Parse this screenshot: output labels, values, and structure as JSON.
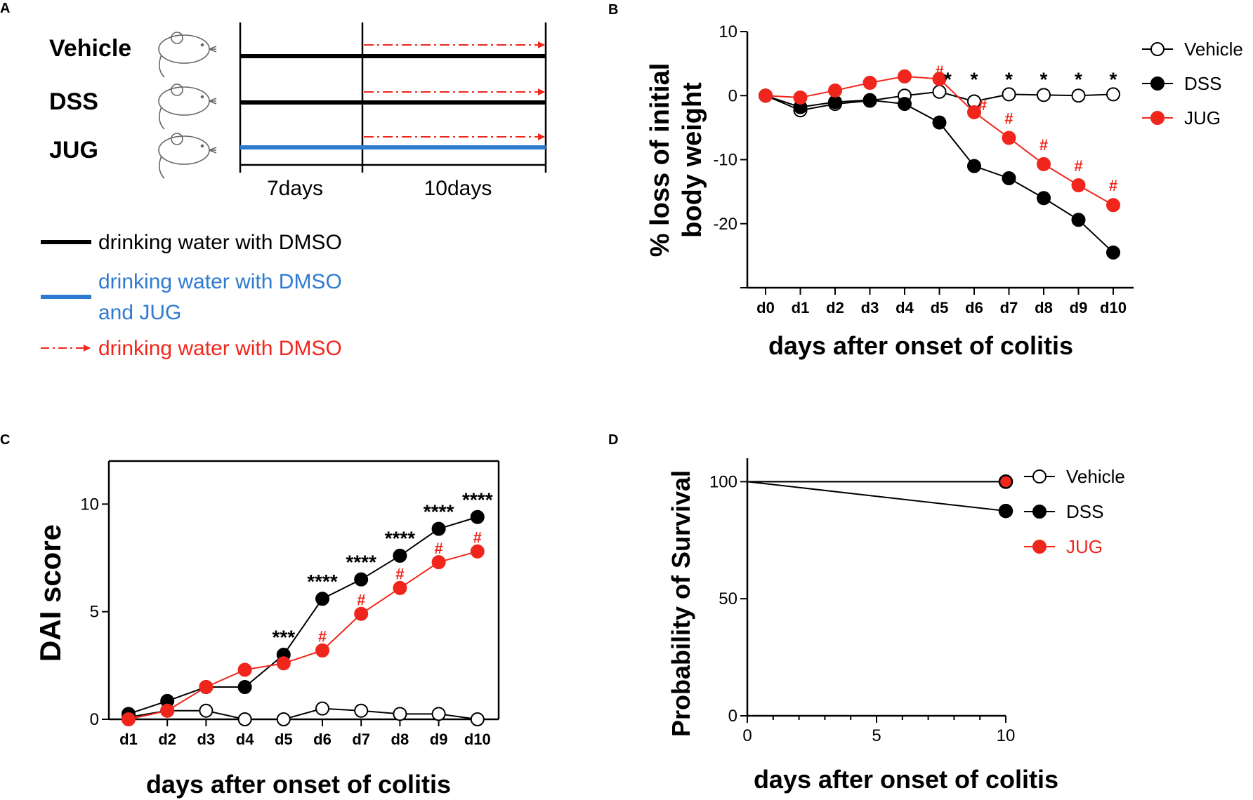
{
  "colors": {
    "black": "#000000",
    "red": "#f0261c",
    "blue": "#2e7ad1",
    "white": "#ffffff"
  },
  "panels": {
    "A": {
      "letter": "A",
      "groups": [
        "Vehicle",
        "DSS",
        "JUG"
      ],
      "durations": [
        "7days",
        "10days"
      ],
      "legend": [
        {
          "lines": [
            "drinking water with DMSO"
          ],
          "style": "black"
        },
        {
          "lines": [
            "drinking water with DMSO",
            "and JUG"
          ],
          "style": "blue"
        },
        {
          "lines": [
            "drinking water with DMSO"
          ],
          "style": "red-dashed-arrow"
        }
      ]
    },
    "B": {
      "letter": "B"
    },
    "C": {
      "letter": "C"
    },
    "D": {
      "letter": "D"
    }
  },
  "chart_data": [
    {
      "panel": "B",
      "type": "line",
      "ylabel": "% loss of initial body weight",
      "xlabel": "days after onset of colitis",
      "categories": [
        "d0",
        "d1",
        "d2",
        "d3",
        "d4",
        "d5",
        "d6",
        "d7",
        "d8",
        "d9",
        "d10"
      ],
      "ylim": [
        -30,
        10
      ],
      "yticks": [
        10,
        0,
        -10,
        -20
      ],
      "ytick_labels": [
        "10",
        "0",
        "-10",
        "-20"
      ],
      "series": [
        {
          "name": "Vehicle",
          "marker": "open",
          "values": [
            0,
            -2.3,
            -1.3,
            -0.8,
            0,
            0.6,
            -0.9,
            0.2,
            0.1,
            0,
            0.2
          ]
        },
        {
          "name": "DSS",
          "marker": "black",
          "values": [
            0,
            -1.8,
            -1.0,
            -0.7,
            -1.3,
            -4.2,
            -11.0,
            -12.9,
            -16.0,
            -19.4,
            -24.5
          ]
        },
        {
          "name": "JUG",
          "marker": "red",
          "values": [
            0,
            -0.3,
            0.8,
            2.0,
            3.0,
            2.6,
            -2.6,
            -6.6,
            -10.7,
            -14.0,
            -17.1
          ]
        }
      ],
      "annotations": [
        {
          "text": "#",
          "color": "red",
          "category": "d5",
          "y": 3.0
        },
        {
          "text": "*",
          "color": "black",
          "category": "d5",
          "y": 1.5,
          "offset": "right"
        },
        {
          "text": "*",
          "color": "black",
          "category": "d6",
          "y": 1.5
        },
        {
          "text": "#",
          "color": "red",
          "category": "d6",
          "y": -2.3,
          "offset": "right"
        },
        {
          "text": "*",
          "color": "black",
          "category": "d7",
          "y": 1.5
        },
        {
          "text": "#",
          "color": "red",
          "category": "d7",
          "y": -4.4
        },
        {
          "text": "*",
          "color": "black",
          "category": "d8",
          "y": 1.5
        },
        {
          "text": "#",
          "color": "red",
          "category": "d8",
          "y": -8.5
        },
        {
          "text": "*",
          "color": "black",
          "category": "d9",
          "y": 1.5
        },
        {
          "text": "#",
          "color": "red",
          "category": "d9",
          "y": -11.8
        },
        {
          "text": "*",
          "color": "black",
          "category": "d10",
          "y": 1.5
        },
        {
          "text": "#",
          "color": "red",
          "category": "d10",
          "y": -14.9
        }
      ],
      "legend": [
        "Vehicle",
        "DSS",
        "JUG"
      ]
    },
    {
      "panel": "C",
      "type": "line",
      "ylabel": "DAI score",
      "xlabel": "days after onset of colitis",
      "categories": [
        "d1",
        "d2",
        "d3",
        "d4",
        "d5",
        "d6",
        "d7",
        "d8",
        "d9",
        "d10"
      ],
      "ylim": [
        0,
        12
      ],
      "yticks": [
        0,
        5,
        10
      ],
      "ytick_labels": [
        "0",
        "5",
        "10"
      ],
      "series": [
        {
          "name": "Vehicle",
          "marker": "open",
          "values": [
            0.1,
            0.4,
            0.4,
            0,
            0,
            0.5,
            0.4,
            0.25,
            0.25,
            0
          ]
        },
        {
          "name": "DSS",
          "marker": "black",
          "values": [
            0.25,
            0.85,
            1.5,
            1.5,
            3.0,
            5.6,
            6.5,
            7.6,
            8.85,
            9.4
          ]
        },
        {
          "name": "JUG",
          "marker": "red",
          "values": [
            0,
            0.4,
            1.5,
            2.3,
            2.6,
            3.2,
            4.9,
            6.1,
            7.3,
            7.8
          ]
        }
      ],
      "annotations": [
        {
          "text": "***",
          "color": "black",
          "category": "d5",
          "y": 3.5
        },
        {
          "text": "****",
          "color": "black",
          "category": "d6",
          "y": 6.1
        },
        {
          "text": "****",
          "color": "black",
          "category": "d7",
          "y": 7.0
        },
        {
          "text": "****",
          "color": "black",
          "category": "d8",
          "y": 8.1
        },
        {
          "text": "****",
          "color": "black",
          "category": "d9",
          "y": 9.35
        },
        {
          "text": "****",
          "color": "black",
          "category": "d10",
          "y": 9.9
        },
        {
          "text": "#",
          "color": "red",
          "category": "d6",
          "y": 3.6
        },
        {
          "text": "#",
          "color": "red",
          "category": "d7",
          "y": 5.3
        },
        {
          "text": "#",
          "color": "red",
          "category": "d8",
          "y": 6.5
        },
        {
          "text": "#",
          "color": "red",
          "category": "d9",
          "y": 7.7
        },
        {
          "text": "#",
          "color": "red",
          "category": "d10",
          "y": 8.2
        }
      ]
    },
    {
      "panel": "D",
      "type": "line",
      "ylabel": "Probability of Survival",
      "xlabel": "days after onset of colitis",
      "xlim": [
        0,
        10
      ],
      "xticks": [
        0,
        5,
        10
      ],
      "ylim": [
        0,
        110
      ],
      "yticks": [
        0,
        50,
        100
      ],
      "series": [
        {
          "name": "Vehicle",
          "marker": "open",
          "x": [
            0,
            10
          ],
          "values": [
            100,
            100
          ]
        },
        {
          "name": "DSS",
          "marker": "black",
          "x": [
            0,
            10
          ],
          "values": [
            100,
            87.5
          ]
        },
        {
          "name": "JUG",
          "marker": "red",
          "x": [
            0,
            10
          ],
          "values": [
            100,
            100
          ]
        }
      ],
      "legend": [
        "Vehicle",
        "DSS",
        "JUG"
      ]
    }
  ]
}
